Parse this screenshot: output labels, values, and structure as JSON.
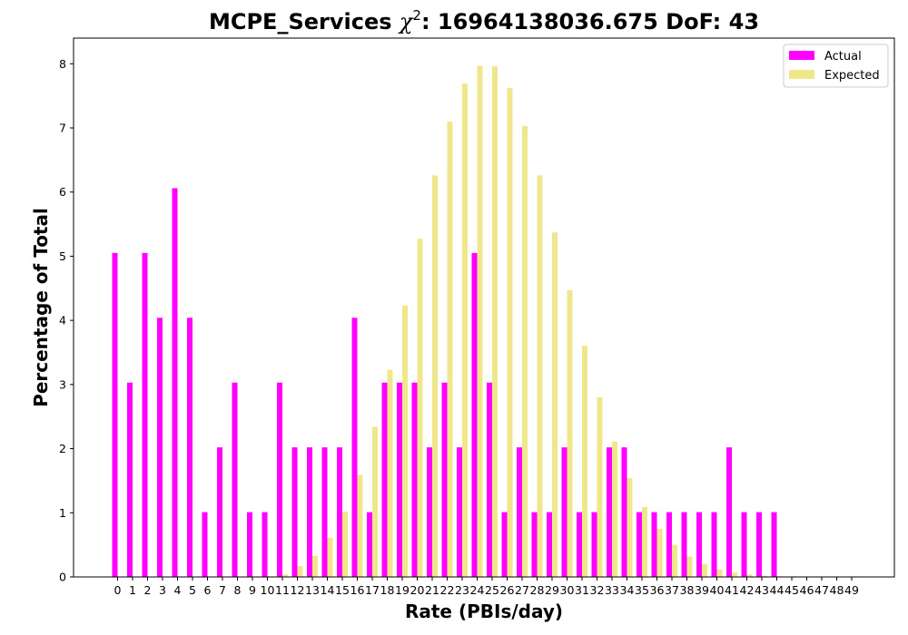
{
  "chart_data": {
    "type": "bar",
    "title_prefix": "MCPE_Services ",
    "title_symbol": "χ",
    "title_sup": "2",
    "title_suffix": ": 16964138036.675 DoF: 43",
    "xlabel": "Rate (PBIs/day)",
    "ylabel": "Percentage of Total",
    "ylim": [
      0,
      8.4
    ],
    "yticks": [
      0,
      1,
      2,
      3,
      4,
      5,
      6,
      7,
      8
    ],
    "grid": false,
    "legend_position": "top-right",
    "categories": [
      "0",
      "1",
      "2",
      "3",
      "4",
      "5",
      "6",
      "7",
      "8",
      "9",
      "10",
      "11",
      "12",
      "13",
      "14",
      "15",
      "16",
      "17",
      "18",
      "19",
      "20",
      "21",
      "22",
      "23",
      "24",
      "25",
      "26",
      "27",
      "28",
      "29",
      "30",
      "31",
      "32",
      "33",
      "34",
      "35",
      "36",
      "37",
      "38",
      "39",
      "40",
      "41",
      "42",
      "43",
      "44",
      "45",
      "46",
      "47",
      "48",
      "49"
    ],
    "series": [
      {
        "name": "Actual",
        "color": "#ff00ff",
        "values": [
          5.05,
          3.03,
          5.05,
          4.04,
          6.06,
          4.04,
          1.01,
          2.02,
          3.03,
          1.01,
          1.01,
          3.03,
          2.02,
          2.02,
          2.02,
          2.02,
          4.04,
          1.01,
          3.03,
          3.03,
          3.03,
          2.02,
          3.03,
          2.02,
          5.05,
          3.03,
          1.01,
          2.02,
          1.01,
          1.01,
          2.02,
          1.01,
          1.01,
          2.02,
          2.02,
          1.01,
          1.01,
          1.01,
          1.01,
          1.01,
          1.01,
          2.02,
          1.01,
          1.01,
          1.01,
          0,
          0,
          0,
          0,
          0
        ]
      },
      {
        "name": "Expected",
        "color": "#f0e68c",
        "values": [
          0,
          0,
          0,
          0,
          0,
          0,
          0,
          0,
          0,
          0,
          0.01,
          0.04,
          0.17,
          0.33,
          0.61,
          1.02,
          1.59,
          2.34,
          3.23,
          4.23,
          5.27,
          6.26,
          7.1,
          7.69,
          7.97,
          7.96,
          7.62,
          7.03,
          6.26,
          5.37,
          4.47,
          3.6,
          2.8,
          2.11,
          1.54,
          1.09,
          0.75,
          0.5,
          0.32,
          0.2,
          0.12,
          0.07,
          0.04,
          0.02,
          0.01,
          0.01,
          0,
          0,
          0,
          0
        ]
      }
    ]
  }
}
